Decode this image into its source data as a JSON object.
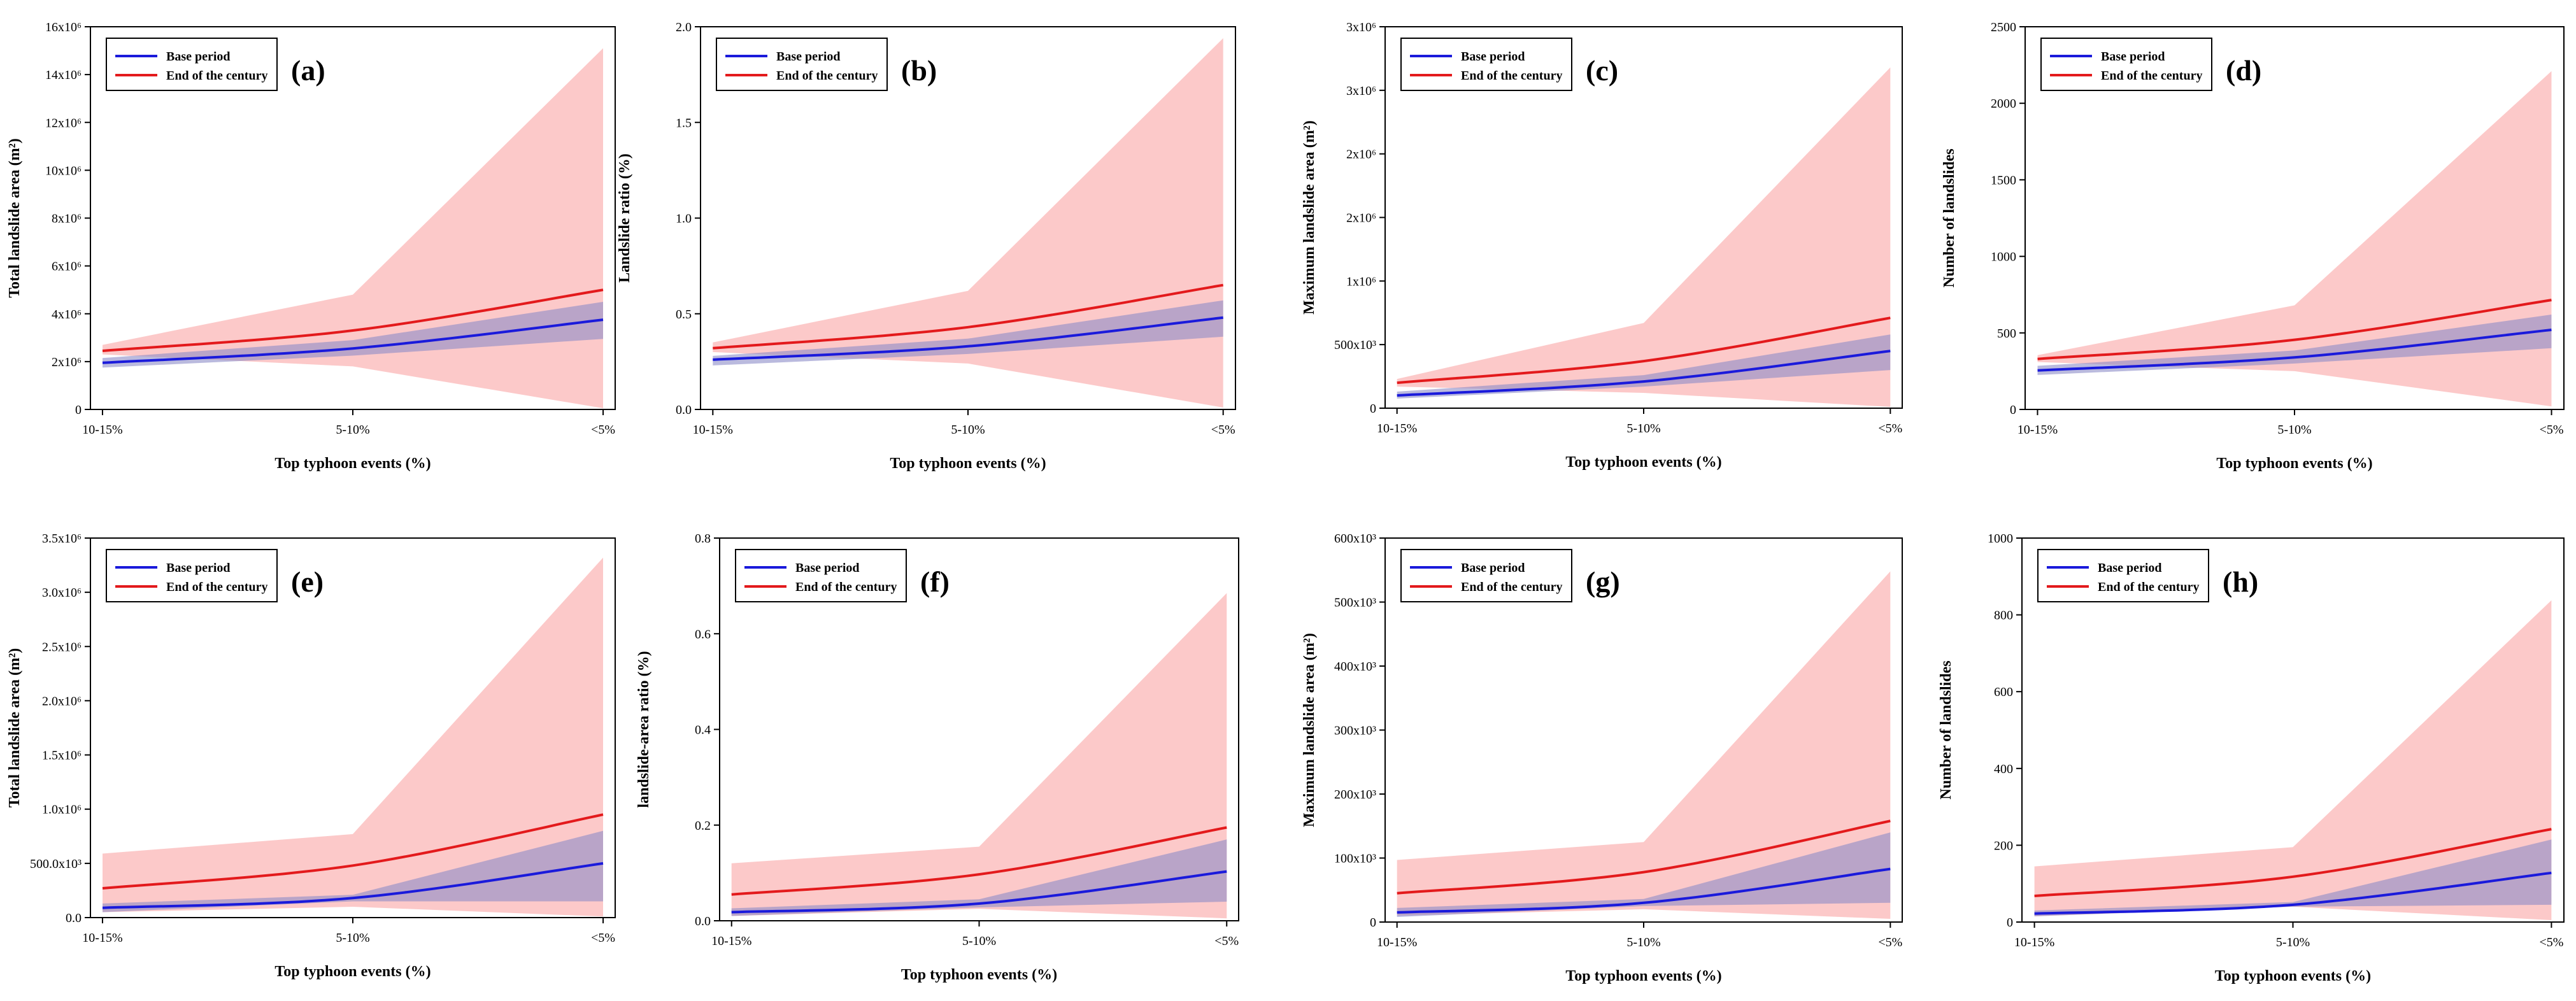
{
  "legend": {
    "base": "Base period",
    "end": "End of the century"
  },
  "colors": {
    "base_line": "#1a1adb",
    "end_line": "#e31a1c",
    "end_band": "#fcc0c0",
    "base_band": "#8c8cc8"
  },
  "chart_data": [
    {
      "type": "area",
      "panel": "(a)",
      "xlabel": "Top typhoon events (%)",
      "ylabel": "Total landslide area (m²)",
      "categories": [
        "10-15%",
        "5-10%",
        "<5%"
      ],
      "ylim": [
        0,
        16000000
      ],
      "yticks": [
        0,
        2000000,
        4000000,
        6000000,
        8000000,
        10000000,
        12000000,
        14000000,
        16000000
      ],
      "ytick_labels": [
        "0",
        "2x10⁶",
        "4x10⁶",
        "6x10⁶",
        "8x10⁶",
        "10x10⁶",
        "12x10⁶",
        "14x10⁶",
        "16x10⁶"
      ],
      "base": {
        "values": [
          1950000,
          2550000,
          3750000
        ],
        "lower": [
          1750000,
          2250000,
          2950000
        ],
        "upper": [
          2150000,
          2900000,
          4500000
        ]
      },
      "end": {
        "values": [
          2450000,
          3300000,
          5000000
        ],
        "lower": [
          2300000,
          1800000,
          50000
        ],
        "upper": [
          2700000,
          4800000,
          15100000
        ]
      }
    },
    {
      "type": "area",
      "panel": "(b)",
      "xlabel": "Top typhoon events (%)",
      "ylabel": "Landslide ratio (%)",
      "categories": [
        "10-15%",
        "5-10%",
        "<5%"
      ],
      "ylim": [
        0,
        2.0
      ],
      "yticks": [
        0,
        0.5,
        1.0,
        1.5,
        2.0
      ],
      "ytick_labels": [
        "0.0",
        "0.5",
        "1.0",
        "1.5",
        "2.0"
      ],
      "base": {
        "values": [
          0.26,
          0.33,
          0.48
        ],
        "lower": [
          0.23,
          0.29,
          0.38
        ],
        "upper": [
          0.28,
          0.37,
          0.57
        ]
      },
      "end": {
        "values": [
          0.32,
          0.43,
          0.65
        ],
        "lower": [
          0.3,
          0.24,
          0.01
        ],
        "upper": [
          0.35,
          0.62,
          1.94
        ]
      }
    },
    {
      "type": "area",
      "panel": "(c)",
      "xlabel": "Top typhoon events (%)",
      "ylabel": "Maximum landslide area (m²)",
      "categories": [
        "10-15%",
        "5-10%",
        "<5%"
      ],
      "ylim": [
        0,
        3000000
      ],
      "yticks": [
        0,
        500000,
        1000000,
        1500000,
        2000000,
        2500000,
        3000000
      ],
      "ytick_labels": [
        "0",
        "500x10³",
        "1x10⁶",
        "2x10⁶",
        "2x10⁶",
        "3x10⁶",
        "3x10⁶"
      ],
      "base": {
        "values": [
          100000,
          210000,
          450000
        ],
        "lower": [
          75000,
          170000,
          300000
        ],
        "upper": [
          130000,
          260000,
          580000
        ]
      },
      "end": {
        "values": [
          200000,
          370000,
          710000
        ],
        "lower": [
          170000,
          120000,
          10000
        ],
        "upper": [
          230000,
          670000,
          2680000
        ]
      }
    },
    {
      "type": "area",
      "panel": "(d)",
      "xlabel": "Top typhoon events (%)",
      "ylabel": "Number of landslides",
      "categories": [
        "10-15%",
        "5-10%",
        "<5%"
      ],
      "ylim": [
        0,
        2500
      ],
      "yticks": [
        0,
        500,
        1000,
        1500,
        2000,
        2500
      ],
      "ytick_labels": [
        "0",
        "500",
        "1000",
        "1500",
        "2000",
        "2500"
      ],
      "base": {
        "values": [
          255,
          340,
          520
        ],
        "lower": [
          225,
          300,
          400
        ],
        "upper": [
          285,
          385,
          620
        ]
      },
      "end": {
        "values": [
          330,
          455,
          715
        ],
        "lower": [
          310,
          250,
          20
        ],
        "upper": [
          355,
          680,
          2210
        ]
      }
    },
    {
      "type": "area",
      "panel": "(e)",
      "xlabel": "Top typhoon events (%)",
      "ylabel": "Total landslide area (m²)",
      "categories": [
        "10-15%",
        "5-10%",
        "<5%"
      ],
      "ylim": [
        0,
        3500000
      ],
      "yticks": [
        0,
        500000,
        1000000,
        1500000,
        2000000,
        2500000,
        3000000,
        3500000
      ],
      "ytick_labels": [
        "0.0",
        "500.0x10³",
        "1.0x10⁶",
        "1.5x10⁶",
        "2.0x10⁶",
        "2.5x10⁶",
        "3.0x10⁶",
        "3.5x10⁶"
      ],
      "base": {
        "values": [
          90000,
          180000,
          500000
        ],
        "lower": [
          50000,
          150000,
          150000
        ],
        "upper": [
          130000,
          210000,
          800000
        ]
      },
      "end": {
        "values": [
          270000,
          480000,
          950000
        ],
        "lower": [
          50000,
          100000,
          10000
        ],
        "upper": [
          590000,
          770000,
          3320000
        ]
      }
    },
    {
      "type": "area",
      "panel": "(f)",
      "xlabel": "Top typhoon events (%)",
      "ylabel": "landslide-area ratio (%)",
      "categories": [
        "10-15%",
        "5-10%",
        "<5%"
      ],
      "ylim": [
        0,
        0.8
      ],
      "yticks": [
        0,
        0.2,
        0.4,
        0.6,
        0.8
      ],
      "ytick_labels": [
        "0.0",
        "0.2",
        "0.4",
        "0.6",
        "0.8"
      ],
      "base": {
        "values": [
          0.018,
          0.036,
          0.103
        ],
        "lower": [
          0.01,
          0.028,
          0.04
        ],
        "upper": [
          0.026,
          0.045,
          0.17
        ]
      },
      "end": {
        "values": [
          0.055,
          0.097,
          0.195
        ],
        "lower": [
          0.01,
          0.025,
          0.005
        ],
        "upper": [
          0.12,
          0.155,
          0.685
        ]
      }
    },
    {
      "type": "area",
      "panel": "(g)",
      "xlabel": "Top typhoon events (%)",
      "ylabel": "Maximum landslide area (m²)",
      "categories": [
        "10-15%",
        "5-10%",
        "<5%"
      ],
      "ylim": [
        0,
        600000
      ],
      "yticks": [
        0,
        100000,
        200000,
        300000,
        400000,
        500000,
        600000
      ],
      "ytick_labels": [
        "0",
        "100x10³",
        "200x10³",
        "300x10³",
        "400x10³",
        "500x10³",
        "600x10³"
      ],
      "base": {
        "values": [
          15000,
          30000,
          83000
        ],
        "lower": [
          8000,
          25000,
          30000
        ],
        "upper": [
          22000,
          36000,
          140000
        ]
      },
      "end": {
        "values": [
          45000,
          78000,
          158000
        ],
        "lower": [
          10000,
          20000,
          5000
        ],
        "upper": [
          97000,
          125000,
          548000
        ]
      }
    },
    {
      "type": "area",
      "panel": "(h)",
      "xlabel": "Top typhoon events (%)",
      "ylabel": "Number of landslides",
      "categories": [
        "10-15%",
        "5-10%",
        "<5%"
      ],
      "ylim": [
        0,
        1000
      ],
      "yticks": [
        0,
        200,
        400,
        600,
        800,
        1000
      ],
      "ytick_labels": [
        "0",
        "200",
        "400",
        "600",
        "800",
        "1000"
      ],
      "base": {
        "values": [
          22,
          45,
          128
        ],
        "lower": [
          15,
          40,
          45
        ],
        "upper": [
          30,
          52,
          215
        ]
      },
      "end": {
        "values": [
          68,
          118,
          242
        ],
        "lower": [
          15,
          40,
          5
        ],
        "upper": [
          145,
          195,
          838
        ]
      }
    }
  ]
}
